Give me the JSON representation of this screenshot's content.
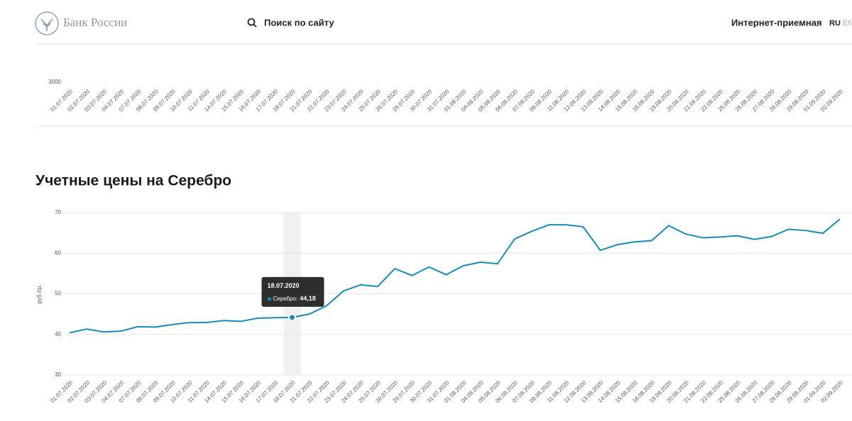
{
  "header": {
    "logo": "Банк России",
    "search": "Поиск по сайту",
    "reception": "Интернет-приемная",
    "lang_ru": "RU",
    "lang_en": "EN"
  },
  "chart_data": [
    {
      "type": "line",
      "categories": [
        "01.07.2020",
        "02.07.2020",
        "03.07.2020",
        "04.07.2020",
        "07.07.2020",
        "08.07.2020",
        "09.07.2020",
        "10.07.2020",
        "11.07.2020",
        "14.07.2020",
        "15.07.2020",
        "16.07.2020",
        "17.07.2020",
        "18.07.2020",
        "21.07.2020",
        "22.07.2020",
        "23.07.2020",
        "24.07.2020",
        "25.07.2020",
        "28.07.2020",
        "29.07.2020",
        "30.07.2020",
        "31.07.2020",
        "01.08.2020",
        "04.08.2020",
        "05.08.2020",
        "06.08.2020",
        "07.08.2020",
        "08.08.2020",
        "11.08.2020",
        "12.08.2020",
        "13.08.2020",
        "14.08.2020",
        "15.08.2020",
        "18.08.2020",
        "19.08.2020",
        "20.08.2020",
        "21.08.2020",
        "22.08.2020",
        "25.08.2020",
        "26.08.2020",
        "27.08.2020",
        "28.08.2020",
        "29.08.2020",
        "01.09.2020",
        "02.09.2020"
      ],
      "yticks": [
        3000
      ]
    },
    {
      "type": "line",
      "title": "Учетные цены на Серебро",
      "y_label": "руб./гр.",
      "categories": [
        "01.07.2020",
        "02.07.2020",
        "03.07.2020",
        "04.07.2020",
        "07.07.2020",
        "08.07.2020",
        "09.07.2020",
        "10.07.2020",
        "11.07.2020",
        "14.07.2020",
        "15.07.2020",
        "16.07.2020",
        "17.07.2020",
        "18.07.2020",
        "21.07.2020",
        "22.07.2020",
        "23.07.2020",
        "24.07.2020",
        "25.07.2020",
        "28.07.2020",
        "29.07.2020",
        "30.07.2020",
        "31.07.2020",
        "01.08.2020",
        "04.08.2020",
        "05.08.2020",
        "06.08.2020",
        "07.08.2020",
        "08.08.2020",
        "11.08.2020",
        "12.08.2020",
        "13.08.2020",
        "14.08.2020",
        "15.08.2020",
        "18.08.2020",
        "19.08.2020",
        "20.08.2020",
        "21.08.2020",
        "22.08.2020",
        "25.08.2020",
        "26.08.2020",
        "27.08.2020",
        "28.08.2020",
        "29.08.2020",
        "01.09.2020",
        "02.09.2020"
      ],
      "values": [
        40.4,
        41.3,
        40.6,
        40.8,
        41.9,
        41.8,
        42.4,
        42.9,
        42.9,
        43.4,
        43.2,
        44.0,
        44.1,
        44.18,
        45.0,
        47.0,
        50.7,
        52.2,
        51.8,
        56.2,
        54.5,
        56.6,
        54.7,
        56.9,
        57.8,
        57.4,
        63.5,
        65.4,
        67.0,
        67.0,
        66.5,
        60.7,
        62.1,
        62.8,
        63.1,
        66.8,
        64.7,
        63.8,
        64.0,
        64.3,
        63.4,
        64.1,
        65.9,
        65.6,
        64.9,
        68.4
      ],
      "color": "#1a8ab5",
      "ylim": [
        30,
        70
      ],
      "yticks": [
        30,
        40,
        50,
        60,
        70
      ],
      "grid": true,
      "tooltip": {
        "title": "18.07.2020",
        "series": "Серебро:",
        "value": "44,18"
      }
    }
  ]
}
